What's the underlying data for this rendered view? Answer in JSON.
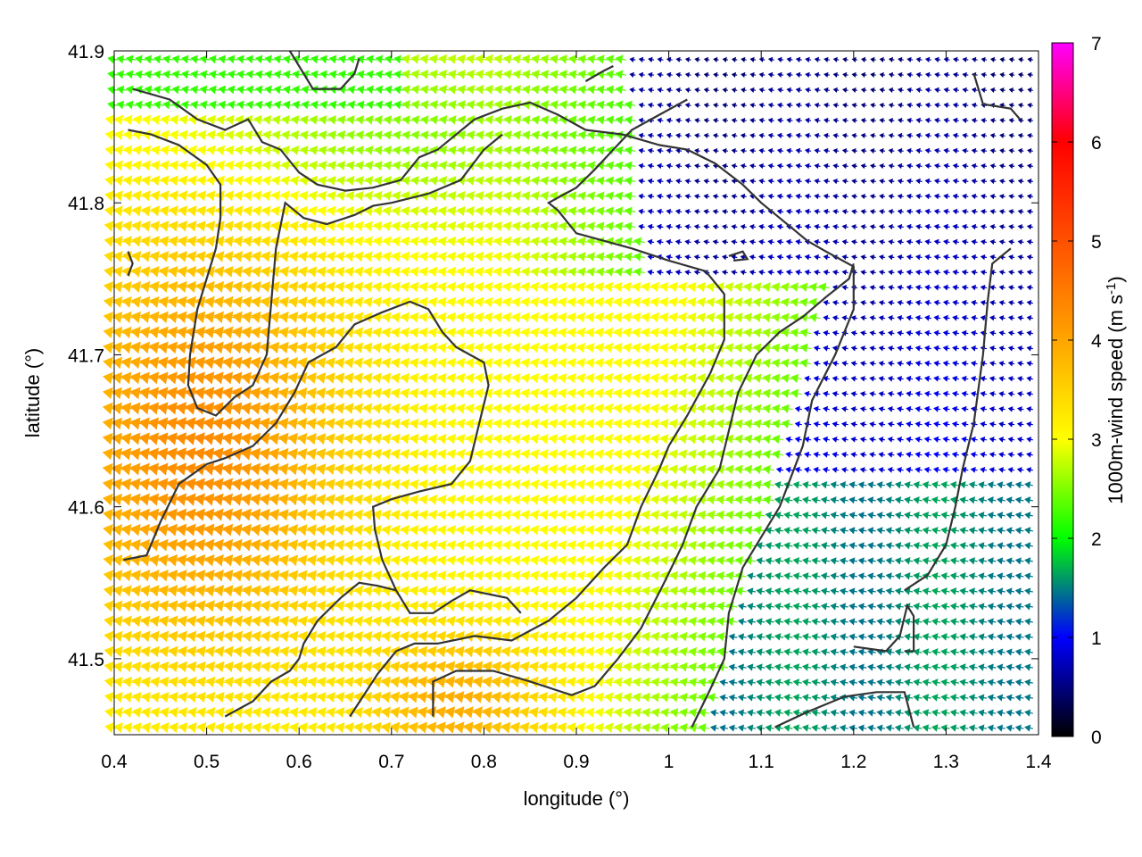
{
  "chart_data": {
    "type": "vector_field",
    "xlabel": "longitude (°)",
    "ylabel": "latitude (°)",
    "colorbar_label": "1000m-wind speed (m s",
    "colorbar_label_sup": "-1",
    "colorbar_label_end": ")",
    "xlim": [
      0.4,
      1.4
    ],
    "ylim": [
      41.45,
      41.9
    ],
    "x_ticks": [
      "0.4",
      "0.5",
      "0.6",
      "0.7",
      "0.8",
      "0.9",
      "1",
      "1.1",
      "1.2",
      "1.3",
      "1.4"
    ],
    "x_tick_values": [
      0.4,
      0.5,
      0.6,
      0.7,
      0.8,
      0.9,
      1.0,
      1.1,
      1.2,
      1.3,
      1.4
    ],
    "y_ticks": [
      "41.5",
      "41.6",
      "41.7",
      "41.8",
      "41.9"
    ],
    "y_tick_values": [
      41.5,
      41.6,
      41.7,
      41.8,
      41.9
    ],
    "colorbar_range": [
      0,
      7
    ],
    "colorbar_ticks": [
      "0",
      "1",
      "2",
      "3",
      "4",
      "5",
      "6",
      "7"
    ],
    "colorbar_tick_values": [
      0,
      1,
      2,
      3,
      4,
      5,
      6,
      7
    ],
    "colormap": [
      {
        "v": 0,
        "color": "#000000"
      },
      {
        "v": 1,
        "color": "#0000ff"
      },
      {
        "v": 2,
        "color": "#00ff00"
      },
      {
        "v": 3,
        "color": "#ffff00"
      },
      {
        "v": 4,
        "color": "#ffa500"
      },
      {
        "v": 5,
        "color": "#ff5000"
      },
      {
        "v": 6,
        "color": "#ff0000"
      },
      {
        "v": 7,
        "color": "#ff00ff"
      }
    ],
    "wind_direction": "westward (easterly wind, slight northeast component)",
    "wind_speed_regions": [
      {
        "region": "southwest interior",
        "speed_range": [
          3.5,
          4.5
        ]
      },
      {
        "region": "central interior",
        "speed_range": [
          2.5,
          3.2
        ]
      },
      {
        "region": "northern valley band",
        "speed_range": [
          2.0,
          2.8
        ]
      },
      {
        "region": "east coast band",
        "speed_range": [
          1.5,
          2.2
        ]
      },
      {
        "region": "northeast sea",
        "speed_range": [
          0.2,
          1.2
        ]
      },
      {
        "region": "southeast sea",
        "speed_range": [
          1.0,
          2.0
        ]
      }
    ],
    "contours": [
      [
        [
          0.42,
          41.875
        ],
        [
          0.46,
          41.868
        ],
        [
          0.49,
          41.855
        ],
        [
          0.52,
          41.848
        ],
        [
          0.545,
          41.855
        ],
        [
          0.56,
          41.84
        ],
        [
          0.58,
          41.835
        ],
        [
          0.6,
          41.82
        ],
        [
          0.62,
          41.812
        ],
        [
          0.65,
          41.808
        ],
        [
          0.68,
          41.81
        ],
        [
          0.71,
          41.815
        ],
        [
          0.73,
          41.83
        ],
        [
          0.75,
          41.835
        ],
        [
          0.77,
          41.845
        ],
        [
          0.79,
          41.855
        ],
        [
          0.82,
          41.862
        ],
        [
          0.85,
          41.866
        ],
        [
          0.88,
          41.858
        ],
        [
          0.91,
          41.848
        ],
        [
          0.95,
          41.845
        ],
        [
          0.99,
          41.838
        ],
        [
          1.02,
          41.835
        ],
        [
          1.05,
          41.826
        ],
        [
          1.08,
          41.812
        ],
        [
          1.1,
          41.8
        ],
        [
          1.12,
          41.79
        ],
        [
          1.15,
          41.775
        ],
        [
          1.17,
          41.768
        ],
        [
          1.2,
          41.758
        ],
        [
          1.2,
          41.73
        ],
        [
          1.18,
          41.7
        ],
        [
          1.155,
          41.67
        ],
        [
          1.145,
          41.64
        ],
        [
          1.12,
          41.6
        ],
        [
          1.1,
          41.58
        ],
        [
          1.08,
          41.56
        ],
        [
          1.065,
          41.53
        ],
        [
          1.06,
          41.5
        ],
        [
          1.045,
          41.48
        ],
        [
          1.025,
          41.455
        ]
      ],
      [
        [
          0.415,
          41.848
        ],
        [
          0.44,
          41.845
        ],
        [
          0.47,
          41.838
        ],
        [
          0.5,
          41.825
        ],
        [
          0.515,
          41.812
        ],
        [
          0.515,
          41.79
        ],
        [
          0.51,
          41.77
        ],
        [
          0.5,
          41.75
        ],
        [
          0.49,
          41.73
        ],
        [
          0.482,
          41.7
        ],
        [
          0.48,
          41.68
        ],
        [
          0.49,
          41.665
        ],
        [
          0.51,
          41.66
        ],
        [
          0.53,
          41.672
        ],
        [
          0.55,
          41.68
        ],
        [
          0.565,
          41.7
        ],
        [
          0.57,
          41.735
        ],
        [
          0.575,
          41.77
        ],
        [
          0.585,
          41.8
        ],
        [
          0.605,
          41.79
        ],
        [
          0.63,
          41.786
        ],
        [
          0.66,
          41.792
        ],
        [
          0.68,
          41.798
        ],
        [
          0.7,
          41.8
        ],
        [
          0.74,
          41.806
        ],
        [
          0.775,
          41.815
        ],
        [
          0.8,
          41.835
        ],
        [
          0.82,
          41.845
        ]
      ],
      [
        [
          0.41,
          41.565
        ],
        [
          0.435,
          41.568
        ],
        [
          0.45,
          41.59
        ],
        [
          0.47,
          41.615
        ],
        [
          0.5,
          41.628
        ],
        [
          0.52,
          41.632
        ],
        [
          0.55,
          41.64
        ],
        [
          0.575,
          41.655
        ],
        [
          0.595,
          41.675
        ],
        [
          0.61,
          41.695
        ],
        [
          0.64,
          41.705
        ],
        [
          0.66,
          41.72
        ],
        [
          0.69,
          41.728
        ],
        [
          0.72,
          41.735
        ],
        [
          0.74,
          41.73
        ],
        [
          0.755,
          41.715
        ],
        [
          0.77,
          41.705
        ],
        [
          0.8,
          41.695
        ],
        [
          0.805,
          41.68
        ],
        [
          0.795,
          41.655
        ],
        [
          0.785,
          41.63
        ],
        [
          0.765,
          41.615
        ],
        [
          0.73,
          41.61
        ],
        [
          0.7,
          41.605
        ],
        [
          0.68,
          41.6
        ],
        [
          0.682,
          41.585
        ],
        [
          0.69,
          41.565
        ],
        [
          0.705,
          41.545
        ],
        [
          0.72,
          41.53
        ],
        [
          0.745,
          41.53
        ],
        [
          0.765,
          41.538
        ],
        [
          0.785,
          41.545
        ],
        [
          0.825,
          41.54
        ],
        [
          0.84,
          41.53
        ]
      ],
      [
        [
          0.52,
          41.462
        ],
        [
          0.55,
          41.472
        ],
        [
          0.57,
          41.485
        ],
        [
          0.59,
          41.492
        ],
        [
          0.6,
          41.5
        ],
        [
          0.605,
          41.51
        ],
        [
          0.62,
          41.525
        ],
        [
          0.645,
          41.54
        ],
        [
          0.665,
          41.55
        ],
        [
          0.685,
          41.548
        ],
        [
          0.705,
          41.545
        ]
      ],
      [
        [
          0.655,
          41.462
        ],
        [
          0.685,
          41.49
        ],
        [
          0.705,
          41.505
        ],
        [
          0.725,
          41.51
        ],
        [
          0.75,
          41.51
        ],
        [
          0.79,
          41.515
        ],
        [
          0.83,
          41.512
        ],
        [
          0.87,
          41.525
        ],
        [
          0.9,
          41.54
        ],
        [
          0.93,
          41.56
        ],
        [
          0.955,
          41.575
        ],
        [
          0.97,
          41.6
        ],
        [
          0.99,
          41.625
        ],
        [
          1.0,
          41.64
        ],
        [
          1.02,
          41.66
        ],
        [
          1.045,
          41.688
        ],
        [
          1.06,
          41.71
        ],
        [
          1.06,
          41.74
        ],
        [
          1.04,
          41.755
        ],
        [
          1.0,
          41.762
        ],
        [
          0.96,
          41.77
        ],
        [
          0.9,
          41.78
        ],
        [
          0.88,
          41.795
        ],
        [
          0.87,
          41.8
        ],
        [
          0.9,
          41.81
        ],
        [
          0.92,
          41.822
        ],
        [
          0.94,
          41.835
        ],
        [
          0.96,
          41.848
        ],
        [
          0.99,
          41.858
        ],
        [
          1.02,
          41.868
        ]
      ],
      [
        [
          0.745,
          41.462
        ],
        [
          0.745,
          41.485
        ],
        [
          0.77,
          41.492
        ],
        [
          0.81,
          41.492
        ],
        [
          0.85,
          41.485
        ],
        [
          0.895,
          41.476
        ],
        [
          0.92,
          41.482
        ],
        [
          0.945,
          41.5
        ],
        [
          0.97,
          41.52
        ],
        [
          0.995,
          41.55
        ],
        [
          1.015,
          41.575
        ],
        [
          1.03,
          41.6
        ],
        [
          1.055,
          41.625
        ],
        [
          1.065,
          41.65
        ],
        [
          1.075,
          41.675
        ],
        [
          1.095,
          41.7
        ],
        [
          1.12,
          41.715
        ],
        [
          1.145,
          41.725
        ],
        [
          1.17,
          41.738
        ],
        [
          1.195,
          41.75
        ],
        [
          1.2,
          41.76
        ]
      ],
      [
        [
          1.115,
          41.455
        ],
        [
          1.15,
          41.465
        ],
        [
          1.19,
          41.475
        ],
        [
          1.225,
          41.478
        ],
        [
          1.255,
          41.478
        ],
        [
          1.265,
          41.455
        ]
      ],
      [
        [
          1.2,
          41.508
        ],
        [
          1.235,
          41.505
        ],
        [
          1.25,
          41.515
        ],
        [
          1.258,
          41.535
        ],
        [
          1.265,
          41.528
        ],
        [
          1.265,
          41.505
        ],
        [
          1.255,
          41.505
        ]
      ],
      [
        [
          1.255,
          41.545
        ],
        [
          1.28,
          41.555
        ],
        [
          1.3,
          41.575
        ],
        [
          1.31,
          41.6
        ],
        [
          1.318,
          41.625
        ],
        [
          1.33,
          41.655
        ],
        [
          1.34,
          41.7
        ],
        [
          1.345,
          41.735
        ],
        [
          1.35,
          41.76
        ],
        [
          1.37,
          41.77
        ]
      ],
      [
        [
          1.33,
          41.885
        ],
        [
          1.34,
          41.865
        ],
        [
          1.37,
          41.862
        ],
        [
          1.38,
          41.855
        ]
      ],
      [
        [
          0.59,
          41.9
        ],
        [
          0.605,
          41.885
        ],
        [
          0.615,
          41.875
        ],
        [
          0.645,
          41.875
        ],
        [
          0.66,
          41.885
        ],
        [
          0.665,
          41.895
        ]
      ],
      [
        [
          0.91,
          41.88
        ],
        [
          0.93,
          41.887
        ],
        [
          0.94,
          41.89
        ]
      ],
      [
        [
          0.415,
          41.768
        ],
        [
          0.42,
          41.76
        ],
        [
          0.415,
          41.752
        ]
      ],
      [
        [
          1.065,
          41.765
        ],
        [
          1.08,
          41.768
        ],
        [
          1.085,
          41.763
        ],
        [
          1.07,
          41.762
        ]
      ]
    ]
  }
}
